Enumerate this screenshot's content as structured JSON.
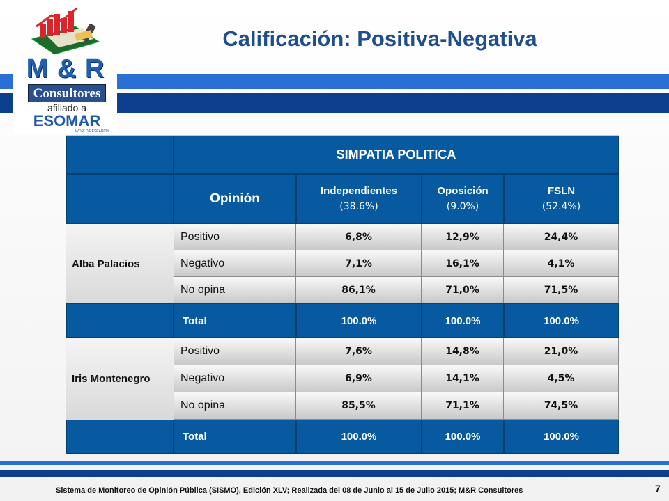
{
  "header": {
    "title": "Calificación: Positiva-Negativa",
    "logo": {
      "brand": "M & R",
      "consultores": "Consultores",
      "afiliado": "afiliado a",
      "esomar": "ESOMAR",
      "world_research": "WORLD RESEARCH"
    }
  },
  "table": {
    "simpatia": "SIMPATIA POLITICA",
    "opinion_header": "Opinión",
    "columns": [
      {
        "name": "Independientes",
        "pct": "(38.6%)"
      },
      {
        "name": "Oposición",
        "pct": "(9.0%)"
      },
      {
        "name": "FSLN",
        "pct": "(52.4%)"
      }
    ],
    "groups": [
      {
        "name": "Alba Palacios",
        "rows": [
          {
            "label": "Positivo",
            "values": [
              "6,8%",
              "12,9%",
              "24,4%"
            ]
          },
          {
            "label": "Negativo",
            "values": [
              "7,1%",
              "16,1%",
              "4,1%"
            ]
          },
          {
            "label": "No opina",
            "values": [
              "86,1%",
              "71,0%",
              "71,5%"
            ]
          }
        ],
        "total": {
          "label": "Total",
          "values": [
            "100.0%",
            "100.0%",
            "100.0%"
          ]
        }
      },
      {
        "name": "Iris Montenegro",
        "rows": [
          {
            "label": "Positivo",
            "values": [
              "7,6%",
              "14,8%",
              "21,0%"
            ]
          },
          {
            "label": "Negativo",
            "values": [
              "6,9%",
              "14,1%",
              "4,5%"
            ]
          },
          {
            "label": "No opina",
            "values": [
              "85,5%",
              "71,1%",
              "74,5%"
            ]
          }
        ],
        "total": {
          "label": "Total",
          "values": [
            "100.0%",
            "100.0%",
            "100.0%"
          ]
        }
      }
    ]
  },
  "footer": {
    "text": "Sistema de Monitoreo de Opinión Pública (SISMO), Edición XLV; Realizada del 08 de Junio al 15 de Julio 2015; M&R Consultores",
    "page": "7"
  },
  "colors": {
    "header_blue": "#075aa0",
    "title_blue": "#1f4e8c",
    "band_light": "#2a6fd3",
    "band_dark": "#0d3f8f"
  }
}
